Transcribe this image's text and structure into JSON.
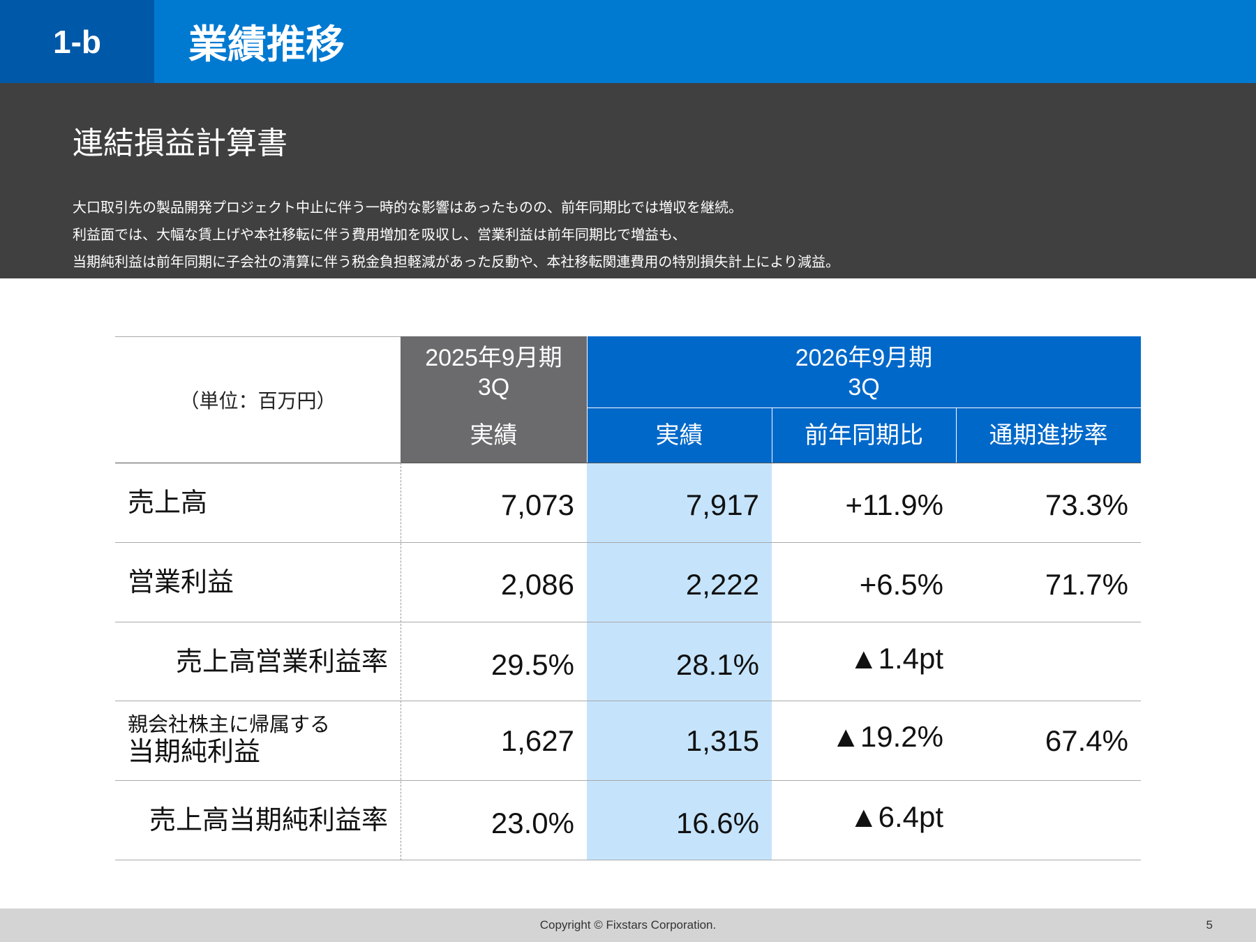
{
  "header": {
    "section_number": "1-b",
    "title": "業績推移"
  },
  "summary": {
    "subtitle": "連結損益計算書",
    "lines": [
      "大口取引先の製品開発プロジェクト中止に伴う一時的な影響はあったものの、前年同期比では増収を継続。",
      "利益面では、大幅な賃上げや本社移転に伴う費用増加を吸収し、営業利益は前年同期比で増益も、",
      "当期純利益は前年同期に子会社の清算に伴う税金負担軽減があった反動や、本社移転関連費用の特別損失計上により減益。"
    ]
  },
  "table": {
    "unit_label": "（単位：百万円）",
    "period_prev": {
      "line1": "2025年9月期",
      "line2": "3Q"
    },
    "period_curr": {
      "line1": "2026年9月期",
      "line2": "3Q"
    },
    "columns": [
      "実績",
      "実績",
      "前年同期比",
      "通期進捗率"
    ],
    "rows": [
      {
        "label": "売上高",
        "prev": "7,073",
        "curr": "7,917",
        "yoy": "+11.9%",
        "progress": "73.3%"
      },
      {
        "label": "営業利益",
        "prev": "2,086",
        "curr": "2,222",
        "yoy": "+6.5%",
        "progress": "71.7%"
      },
      {
        "label": "売上高営業利益率",
        "prev": "29.5%",
        "curr": "28.1%",
        "yoy": "▲1.4pt",
        "progress": ""
      },
      {
        "label_small": "親会社株主に帰属する",
        "label": "当期純利益",
        "prev": "1,627",
        "curr": "1,315",
        "yoy": "▲19.2%",
        "progress": "67.4%"
      },
      {
        "label": "売上高当期純利益率",
        "prev": "23.0%",
        "curr": "16.6%",
        "yoy": "▲6.4pt",
        "progress": ""
      }
    ]
  },
  "footer": {
    "copyright": "Copyright © Fixstars Corporation.",
    "page_number": "5"
  }
}
